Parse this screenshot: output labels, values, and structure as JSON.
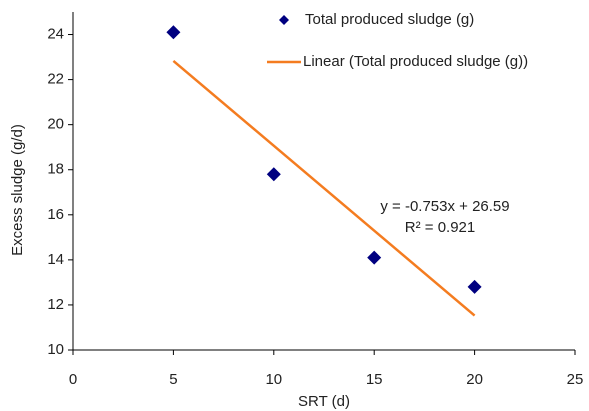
{
  "chart_data": {
    "type": "scatter",
    "xlabel": "SRT (d)",
    "ylabel": "Excess sludge (g/d)",
    "xlim": [
      0,
      25
    ],
    "xticks": [
      0,
      5,
      10,
      15,
      20,
      25
    ],
    "ylim": [
      10,
      25
    ],
    "yticks": [
      10,
      12,
      14,
      16,
      18,
      20,
      22,
      24
    ],
    "series": [
      {
        "name": "Total produced sludge (g)",
        "color": "#000080",
        "kind": "scatter",
        "x": [
          5,
          10,
          15,
          20
        ],
        "values": [
          24.1,
          17.8,
          14.1,
          12.8
        ]
      },
      {
        "name": "Linear (Total produced sludge (g))",
        "color": "#f47c20",
        "kind": "line",
        "x": [
          5,
          20
        ],
        "values": [
          22.83,
          11.53
        ]
      }
    ],
    "annotations": [
      "y = -0.753x + 26.59",
      "R² = 0.921"
    ]
  }
}
